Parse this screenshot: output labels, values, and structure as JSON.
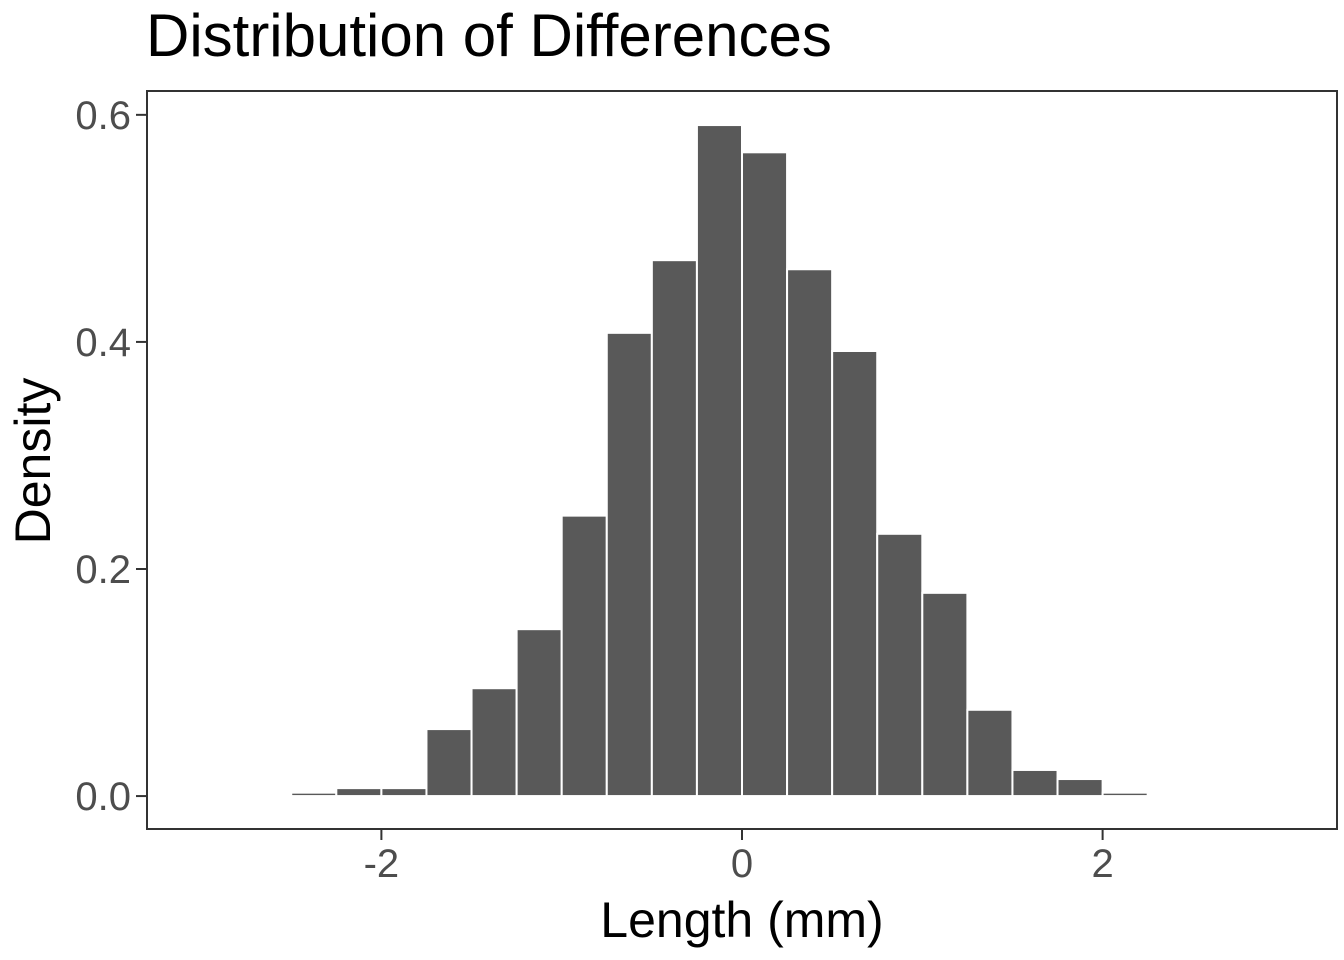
{
  "chart_data": {
    "type": "bar",
    "title": "Distribution of Differences",
    "xlabel": "Length (mm)",
    "ylabel": "Density",
    "xlim": [
      -3.3,
      3.3
    ],
    "ylim": [
      -0.029,
      0.621
    ],
    "xticks": [
      {
        "value": -2,
        "label": "-2"
      },
      {
        "value": 0,
        "label": "0"
      },
      {
        "value": 2,
        "label": "2"
      }
    ],
    "yticks": [
      {
        "value": 0.0,
        "label": "0.0"
      },
      {
        "value": 0.2,
        "label": "0.2"
      },
      {
        "value": 0.4,
        "label": "0.4"
      },
      {
        "value": 0.6,
        "label": "0.6"
      }
    ],
    "grid": false,
    "bin_width": 0.25,
    "bins": [
      {
        "start": -2.5,
        "end": -2.25,
        "density": 0.003
      },
      {
        "start": -2.25,
        "end": -2.0,
        "density": 0.007
      },
      {
        "start": -2.0,
        "end": -1.75,
        "density": 0.007
      },
      {
        "start": -1.75,
        "end": -1.5,
        "density": 0.059
      },
      {
        "start": -1.5,
        "end": -1.25,
        "density": 0.095
      },
      {
        "start": -1.25,
        "end": -1.0,
        "density": 0.147
      },
      {
        "start": -1.0,
        "end": -0.75,
        "density": 0.247
      },
      {
        "start": -0.75,
        "end": -0.5,
        "density": 0.408
      },
      {
        "start": -0.5,
        "end": -0.25,
        "density": 0.472
      },
      {
        "start": -0.25,
        "end": 0.0,
        "density": 0.591
      },
      {
        "start": 0.0,
        "end": 0.25,
        "density": 0.567
      },
      {
        "start": 0.25,
        "end": 0.5,
        "density": 0.464
      },
      {
        "start": 0.5,
        "end": 0.75,
        "density": 0.392
      },
      {
        "start": 0.75,
        "end": 1.0,
        "density": 0.231
      },
      {
        "start": 1.0,
        "end": 1.25,
        "density": 0.179
      },
      {
        "start": 1.25,
        "end": 1.5,
        "density": 0.076
      },
      {
        "start": 1.5,
        "end": 1.75,
        "density": 0.023
      },
      {
        "start": 1.75,
        "end": 2.0,
        "density": 0.015
      },
      {
        "start": 2.0,
        "end": 2.25,
        "density": 0.003
      }
    ],
    "colors": {
      "bar_fill": "#595959",
      "bar_outline": "#ffffff"
    }
  }
}
